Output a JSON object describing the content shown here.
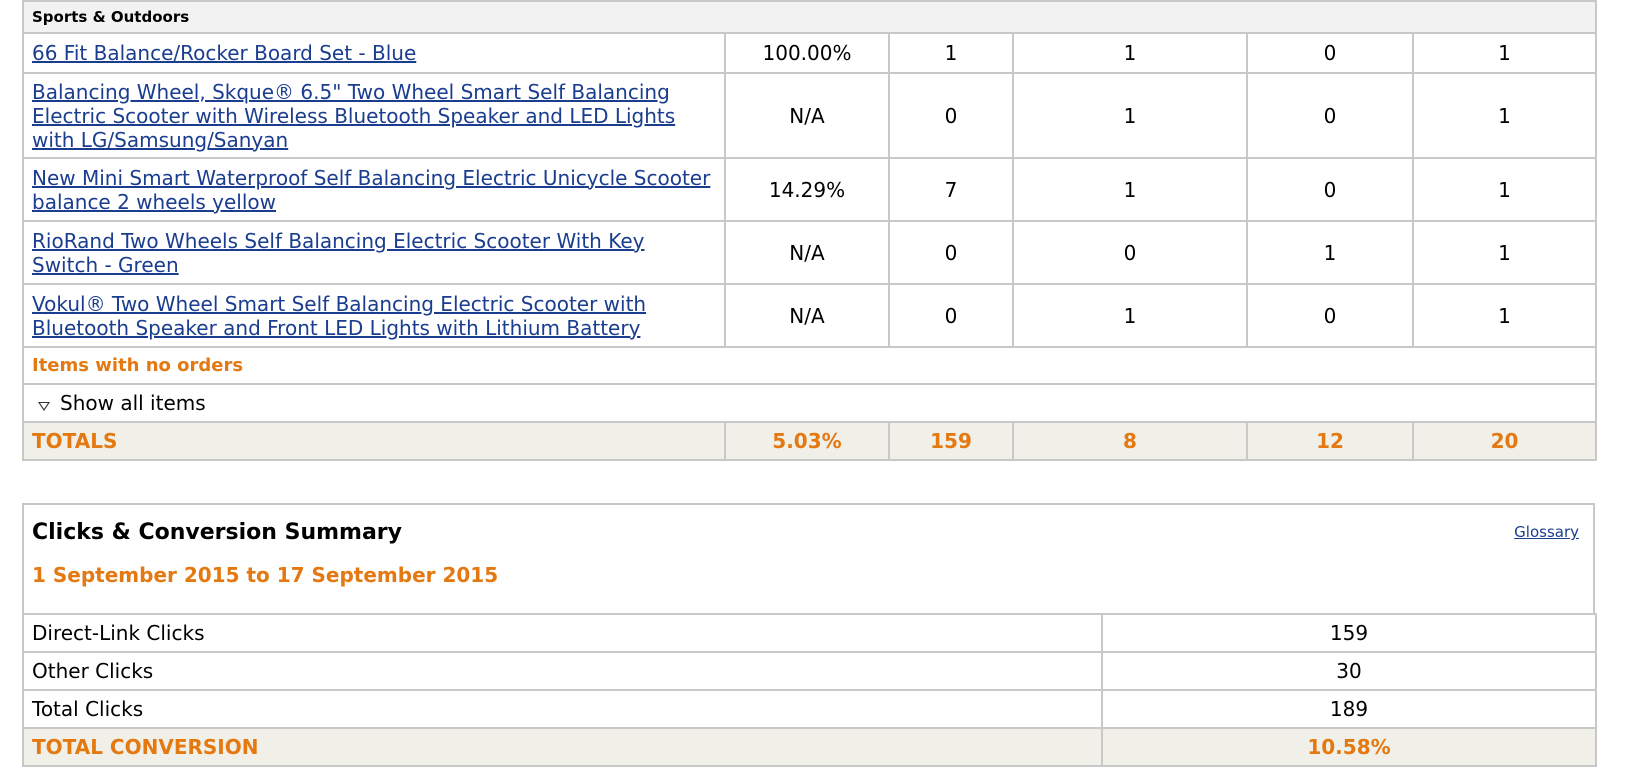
{
  "category": "Sports & Outdoors",
  "items": [
    {
      "name": "66 Fit Balance/Rocker Board Set - Blue",
      "conversion": "100.00%",
      "clicks": "1",
      "ordered": "1",
      "shipped_a": "0",
      "shipped_b": "1"
    },
    {
      "name": "Balancing Wheel, Skque® 6.5\" Two Wheel Smart Self Balancing Electric Scooter with Wireless Bluetooth Speaker and LED Lights with LG/Samsung/Sanyan",
      "conversion": "N/A",
      "clicks": "0",
      "ordered": "1",
      "shipped_a": "0",
      "shipped_b": "1"
    },
    {
      "name": "New Mini Smart Waterproof Self Balancing Electric Unicycle Scooter balance 2 wheels yellow",
      "conversion": "14.29%",
      "clicks": "7",
      "ordered": "1",
      "shipped_a": "0",
      "shipped_b": "1"
    },
    {
      "name": "RioRand Two Wheels Self Balancing Electric Scooter With Key Switch - Green",
      "conversion": "N/A",
      "clicks": "0",
      "ordered": "0",
      "shipped_a": "1",
      "shipped_b": "1"
    },
    {
      "name": "Vokul® Two Wheel Smart Self Balancing Electric Scooter with Bluetooth Speaker and Front LED Lights with Lithium Battery",
      "conversion": "N/A",
      "clicks": "0",
      "ordered": "1",
      "shipped_a": "0",
      "shipped_b": "1"
    }
  ],
  "no_orders_label": "Items with no orders",
  "show_all_label": "Show all items",
  "totals": {
    "label": "TOTALS",
    "conversion": "5.03%",
    "clicks": "159",
    "ordered": "8",
    "shipped_a": "12",
    "shipped_b": "20"
  },
  "summary": {
    "title": "Clicks & Conversion Summary",
    "date_range": "1 September 2015 to 17 September 2015",
    "glossary_label": "Glossary",
    "rows": [
      {
        "label": "Direct-Link Clicks",
        "value": "159"
      },
      {
        "label": "Other Clicks",
        "value": "30"
      },
      {
        "label": "Total Clicks",
        "value": "189"
      }
    ],
    "total": {
      "label": "TOTAL CONVERSION",
      "value": "10.58%"
    }
  },
  "colors": {
    "accent_orange": "#e47911",
    "link_blue": "#1a3d8f",
    "border_gray": "#c8c8c8"
  }
}
